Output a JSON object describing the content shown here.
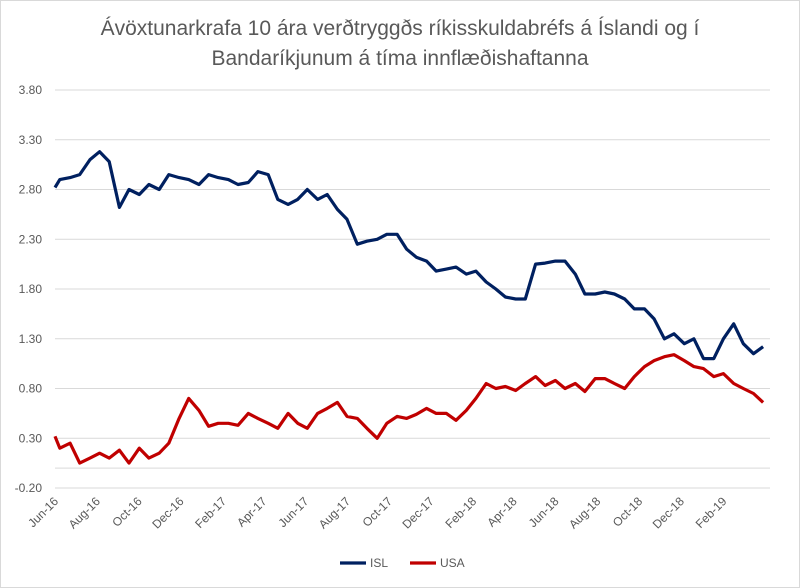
{
  "chart_data": {
    "type": "line",
    "title_line1": "Ávöxtunarkrafa 10 ára verðtryggðs ríkisskuldabréfs á Íslandi og í",
    "title_line2": "Bandaríkjunum á tíma innflæðishaftanna",
    "xlabel": "",
    "ylabel": "",
    "ylim": [
      -0.2,
      3.8
    ],
    "yticks": [
      "3.80",
      "3.30",
      "2.80",
      "2.30",
      "1.80",
      "1.30",
      "0.80",
      "0.30",
      "-0.20"
    ],
    "ytick_values": [
      3.8,
      3.3,
      2.8,
      2.3,
      1.8,
      1.3,
      0.8,
      0.3,
      -0.2
    ],
    "extra_gridline": 0.0,
    "xticks": [
      "Jun-16",
      "Aug-16",
      "Oct-16",
      "Dec-16",
      "Feb-17",
      "Apr-17",
      "Jun-17",
      "Aug-17",
      "Oct-17",
      "Dec-17",
      "Feb-18",
      "Apr-18",
      "Jun-18",
      "Aug-18",
      "Oct-18",
      "Dec-18",
      "Feb-19"
    ],
    "xtick_dates": [
      "2016-06-01",
      "2016-08-01",
      "2016-10-01",
      "2016-12-01",
      "2017-02-01",
      "2017-04-01",
      "2017-06-01",
      "2017-08-01",
      "2017-10-01",
      "2017-12-01",
      "2018-02-01",
      "2018-04-01",
      "2018-06-01",
      "2018-08-01",
      "2018-10-01",
      "2018-12-01",
      "2019-02-01"
    ],
    "xlim": [
      "2016-06-01",
      "2019-04-10"
    ],
    "grid": true,
    "legend_position": "bottom",
    "x": [
      "2016-06-01",
      "2016-06-08",
      "2016-06-23",
      "2016-07-07",
      "2016-07-22",
      "2016-08-05",
      "2016-08-19",
      "2016-09-03",
      "2016-09-17",
      "2016-10-02",
      "2016-10-16",
      "2016-10-31",
      "2016-11-14",
      "2016-11-29",
      "2016-12-13",
      "2016-12-28",
      "2017-01-11",
      "2017-01-25",
      "2017-02-09",
      "2017-02-23",
      "2017-03-10",
      "2017-03-24",
      "2017-04-08",
      "2017-04-22",
      "2017-05-07",
      "2017-05-21",
      "2017-06-04",
      "2017-06-19",
      "2017-07-03",
      "2017-07-18",
      "2017-08-01",
      "2017-08-16",
      "2017-08-30",
      "2017-09-14",
      "2017-09-28",
      "2017-10-13",
      "2017-10-27",
      "2017-11-10",
      "2017-11-25",
      "2017-12-09",
      "2017-12-24",
      "2018-01-07",
      "2018-01-22",
      "2018-02-05",
      "2018-02-20",
      "2018-03-06",
      "2018-03-20",
      "2018-04-04",
      "2018-04-18",
      "2018-05-03",
      "2018-05-17",
      "2018-06-01",
      "2018-06-15",
      "2018-06-30",
      "2018-07-14",
      "2018-07-29",
      "2018-08-12",
      "2018-08-26",
      "2018-09-10",
      "2018-09-24",
      "2018-10-09",
      "2018-10-23",
      "2018-11-07",
      "2018-11-21",
      "2018-12-06",
      "2018-12-20",
      "2019-01-03",
      "2019-01-18",
      "2019-02-01",
      "2019-02-16",
      "2019-03-02",
      "2019-03-17",
      "2019-03-31"
    ],
    "series": [
      {
        "name": "ISL",
        "color": "#002060",
        "values": [
          2.82,
          2.9,
          2.92,
          2.95,
          3.1,
          3.18,
          3.08,
          2.62,
          2.8,
          2.75,
          2.85,
          2.8,
          2.95,
          2.92,
          2.9,
          2.85,
          2.95,
          2.92,
          2.9,
          2.85,
          2.87,
          2.98,
          2.95,
          2.7,
          2.65,
          2.7,
          2.8,
          2.7,
          2.75,
          2.6,
          2.5,
          2.25,
          2.28,
          2.3,
          2.35,
          2.35,
          2.2,
          2.12,
          2.08,
          1.98,
          2.0,
          2.02,
          1.95,
          1.98,
          1.87,
          1.8,
          1.72,
          1.7,
          1.7,
          2.05,
          2.06,
          2.08,
          2.08,
          1.95,
          1.75,
          1.75,
          1.77,
          1.75,
          1.7,
          1.6,
          1.6,
          1.5,
          1.3,
          1.35,
          1.25,
          1.3,
          1.1,
          1.1,
          1.3,
          1.45,
          1.25,
          1.15,
          1.22
        ]
      },
      {
        "name": "USA",
        "color": "#C00000",
        "values": [
          0.32,
          0.2,
          0.25,
          0.05,
          0.1,
          0.15,
          0.1,
          0.18,
          0.05,
          0.2,
          0.1,
          0.15,
          0.25,
          0.5,
          0.7,
          0.58,
          0.42,
          0.45,
          0.45,
          0.43,
          0.55,
          0.5,
          0.45,
          0.4,
          0.55,
          0.45,
          0.4,
          0.55,
          0.6,
          0.66,
          0.52,
          0.5,
          0.4,
          0.3,
          0.45,
          0.52,
          0.5,
          0.54,
          0.6,
          0.55,
          0.55,
          0.48,
          0.58,
          0.7,
          0.85,
          0.8,
          0.82,
          0.78,
          0.85,
          0.92,
          0.83,
          0.88,
          0.8,
          0.85,
          0.77,
          0.9,
          0.9,
          0.85,
          0.8,
          0.92,
          1.02,
          1.08,
          1.12,
          1.14,
          1.08,
          1.02,
          1.0,
          0.92,
          0.95,
          0.85,
          0.8,
          0.75,
          0.66
        ]
      }
    ]
  }
}
